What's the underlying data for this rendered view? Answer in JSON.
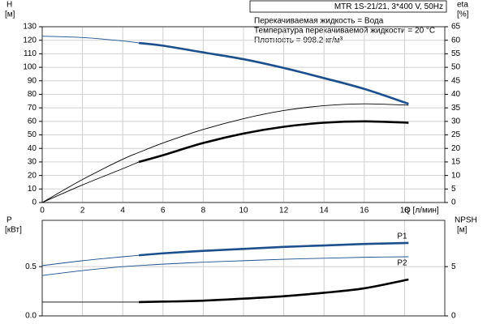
{
  "chart_data": [
    {
      "type": "line",
      "title": "MTR 1S-21/21, 3*400 V, 50Hz",
      "annotations": [
        "Перекачиваемая жидкость = Вода",
        "Температура перекачиваемой жидкости = 20 °C",
        "Плотность = 998.2 кг/м³"
      ],
      "y_label": [
        "H",
        "[м]"
      ],
      "y2_label": [
        "eta",
        "[%]"
      ],
      "x_label": "Q [л/мин]",
      "duty_start": 4.8,
      "x": [
        0,
        2,
        4,
        4.8,
        6,
        8,
        10,
        12,
        14,
        16,
        18.2
      ],
      "xlim": [
        0,
        20
      ],
      "xticks": [
        0,
        2,
        4,
        6,
        8,
        10,
        12,
        14,
        16,
        18
      ],
      "ylim": [
        0,
        130
      ],
      "yticks": [
        0,
        10,
        20,
        30,
        40,
        50,
        60,
        70,
        80,
        90,
        100,
        110,
        120,
        130
      ],
      "y2lim": [
        0,
        65
      ],
      "y2ticks": [
        0,
        5,
        10,
        15,
        20,
        25,
        30,
        35,
        40,
        45,
        50,
        55,
        60,
        65
      ],
      "grid": true,
      "series": [
        {
          "color": "#1c4f8c",
          "line": "duty",
          "values": [
            123,
            122,
            119.5,
            118,
            116,
            111,
            106,
            99.5,
            92,
            84,
            73
          ]
        },
        {
          "color": "#000000",
          "line": "thin",
          "axis": "y2",
          "values": [
            0,
            8.5,
            16,
            18.5,
            22,
            27,
            31,
            34,
            35.8,
            36.5,
            36
          ]
        },
        {
          "color": "#000000",
          "line": "duty",
          "axis": "y2",
          "values": [
            0,
            6.5,
            12.5,
            15,
            17.5,
            22,
            25.5,
            28,
            29.5,
            30,
            29.5
          ]
        }
      ]
    },
    {
      "type": "line",
      "y_label": [
        "P",
        "[кВт]"
      ],
      "y2_label": [
        "NPSH",
        "[м]"
      ],
      "duty_start": 4.8,
      "x": [
        0,
        2,
        4,
        4.8,
        6,
        8,
        10,
        12,
        14,
        16,
        18.2
      ],
      "xlim": [
        0,
        20
      ],
      "ylim": [
        0,
        0.97
      ],
      "yticks": [
        {
          "value": 0,
          "label": "0.0"
        },
        0.5
      ],
      "y2lim": [
        0,
        9.7
      ],
      "y2ticks": [
        0,
        5
      ],
      "grid": true,
      "series": [
        {
          "name": "P1",
          "color": "#1c4f8c",
          "line": "duty",
          "values": [
            0.51,
            0.56,
            0.6,
            0.615,
            0.635,
            0.66,
            0.68,
            0.7,
            0.715,
            0.73,
            0.74
          ]
        },
        {
          "name": "P2",
          "color": "#1c4f8c",
          "line": "thin",
          "values": [
            0.41,
            0.46,
            0.5,
            0.51,
            0.525,
            0.545,
            0.56,
            0.575,
            0.585,
            0.595,
            0.6
          ]
        },
        {
          "color": "#000000",
          "line": "duty",
          "axis": "y2",
          "values": [
            1.4,
            1.4,
            1.4,
            1.4,
            1.45,
            1.55,
            1.75,
            2.0,
            2.35,
            2.8,
            3.7
          ]
        }
      ]
    }
  ]
}
